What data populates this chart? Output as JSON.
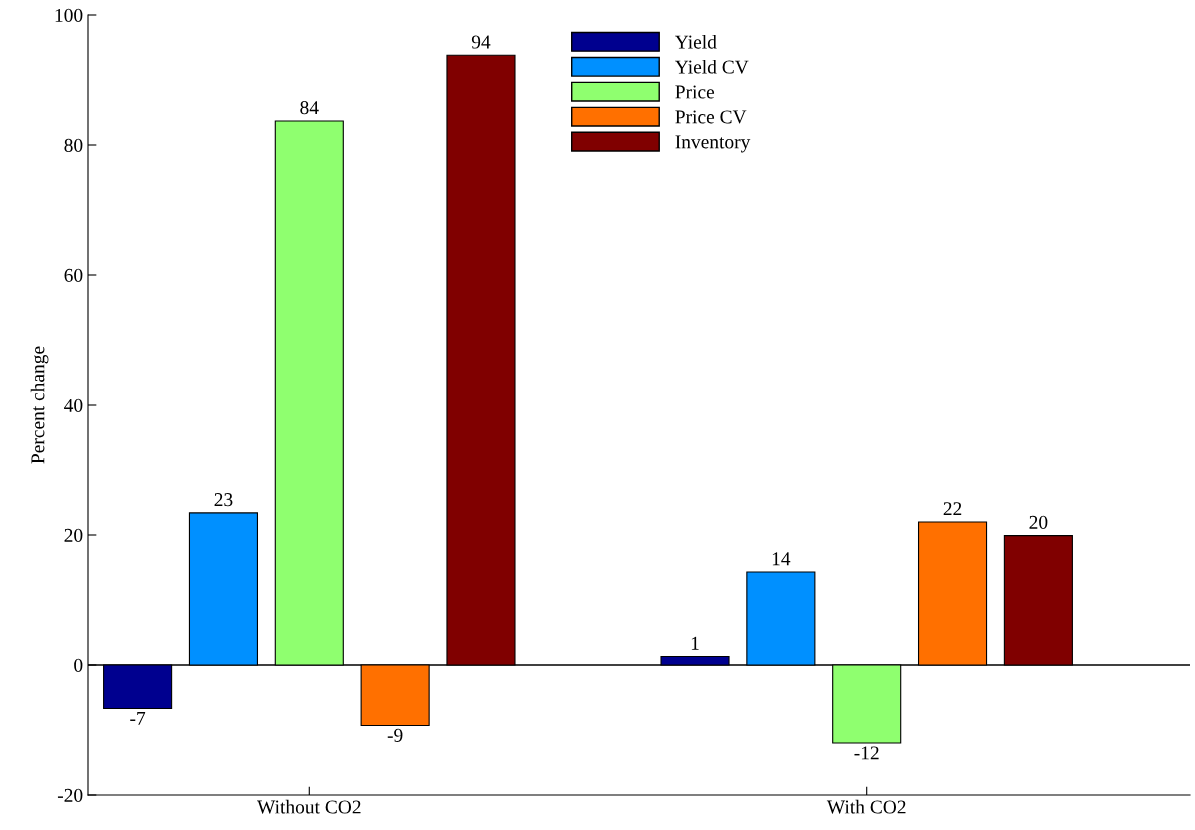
{
  "chart_data": {
    "type": "bar",
    "ylabel": "Percent change",
    "categories": [
      "Without CO2",
      "With CO2"
    ],
    "series": [
      {
        "name": "Yield",
        "color": "#00008f",
        "values": [
          -6.7,
          1.3
        ],
        "value_labels": [
          "-7",
          "1"
        ]
      },
      {
        "name": "Yield CV",
        "color": "#0090ff",
        "values": [
          23.4,
          14.3
        ],
        "value_labels": [
          "23",
          "14"
        ]
      },
      {
        "name": "Price",
        "color": "#8fff6f",
        "values": [
          83.7,
          -12.0
        ],
        "value_labels": [
          "84",
          "-12"
        ]
      },
      {
        "name": "Price CV",
        "color": "#ff7000",
        "values": [
          -9.3,
          22.0
        ],
        "value_labels": [
          "-9",
          "22"
        ]
      },
      {
        "name": "Inventory",
        "color": "#800000",
        "values": [
          93.8,
          19.9
        ],
        "value_labels": [
          "94",
          "20"
        ]
      }
    ],
    "ylim": [
      -20,
      100
    ],
    "yticks": [
      -20,
      0,
      20,
      40,
      60,
      80,
      100
    ],
    "ref_lines": [
      {
        "axis": "y",
        "value": 0,
        "color": "#000000"
      }
    ],
    "grid": false,
    "legend": "top"
  }
}
